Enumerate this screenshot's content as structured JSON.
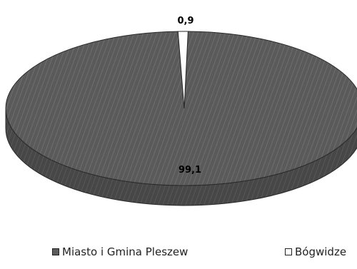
{
  "chart_data": {
    "type": "pie",
    "style": "3d-tilted",
    "categories": [
      "Miasto i Gmina Pleszew",
      "Bógwidze"
    ],
    "values": [
      99.1,
      0.9
    ],
    "value_labels": [
      "99,1",
      "0,9"
    ],
    "colors": [
      "#5c5c5c",
      "#ffffff"
    ],
    "legend_position": "bottom",
    "title": ""
  }
}
